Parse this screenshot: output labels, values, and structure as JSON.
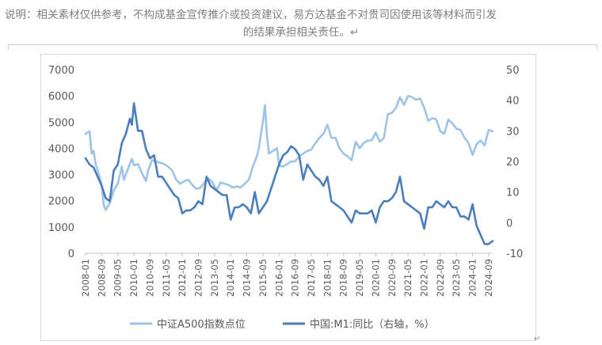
{
  "disclaimer": {
    "line1": "说明：相关素材仅供参考，不构成基金宣传推介或投资建议，易方达基金不对贵司因使用该等材料而引发",
    "line2": "的结果承担相关责任。↵"
  },
  "end_mark": "↵",
  "chart_data": {
    "type": "line",
    "title": "",
    "xlabel": "",
    "ylabel": "",
    "y_left_ticks": [
      "0",
      "1000",
      "2000",
      "3000",
      "4000",
      "5000",
      "6000",
      "7000"
    ],
    "y_right_ticks": [
      "-10",
      "0",
      "10",
      "20",
      "30",
      "40",
      "50"
    ],
    "ylim_left": [
      0,
      7000
    ],
    "ylim_right": [
      -10,
      50
    ],
    "grid": false,
    "legend_position": "bottom",
    "x_ticks": [
      "2008-01",
      "2008-09",
      "2009-05",
      "2010-01",
      "2010-09",
      "2011-05",
      "2012-01",
      "2012-09",
      "2013-05",
      "2014-01",
      "2014-09",
      "2015-05",
      "2016-01",
      "2016-09",
      "2017-05",
      "2018-01",
      "2018-09",
      "2019-05",
      "2020-01",
      "2020-09",
      "2021-05",
      "2022-01",
      "2022-09",
      "2023-05",
      "2024-01",
      "2024-09"
    ],
    "series": [
      {
        "name": "中证A500指数点位",
        "axis": "left",
        "color": "#9dc3e6",
        "points": [
          [
            "2008-01",
            4550
          ],
          [
            "2008-03",
            4650
          ],
          [
            "2008-04",
            3800
          ],
          [
            "2008-05",
            3900
          ],
          [
            "2008-06",
            3400
          ],
          [
            "2008-08",
            2900
          ],
          [
            "2008-09",
            2600
          ],
          [
            "2008-10",
            1850
          ],
          [
            "2008-11",
            1650
          ],
          [
            "2009-01",
            1900
          ],
          [
            "2009-03",
            2400
          ],
          [
            "2009-05",
            2650
          ],
          [
            "2009-07",
            3300
          ],
          [
            "2009-08",
            2800
          ],
          [
            "2009-10",
            3200
          ],
          [
            "2009-12",
            3600
          ],
          [
            "2010-01",
            3350
          ],
          [
            "2010-03",
            3400
          ],
          [
            "2010-05",
            3050
          ],
          [
            "2010-07",
            2750
          ],
          [
            "2010-08",
            3150
          ],
          [
            "2010-10",
            3550
          ],
          [
            "2010-12",
            3500
          ],
          [
            "2011-02",
            3450
          ],
          [
            "2011-04",
            3400
          ],
          [
            "2011-06",
            3300
          ],
          [
            "2011-08",
            3150
          ],
          [
            "2011-10",
            2800
          ],
          [
            "2011-12",
            2650
          ],
          [
            "2012-02",
            2750
          ],
          [
            "2012-04",
            2800
          ],
          [
            "2012-06",
            2600
          ],
          [
            "2012-08",
            2450
          ],
          [
            "2012-10",
            2500
          ],
          [
            "2012-12",
            2700
          ],
          [
            "2013-02",
            2850
          ],
          [
            "2013-04",
            2700
          ],
          [
            "2013-06",
            2400
          ],
          [
            "2013-08",
            2700
          ],
          [
            "2013-10",
            2650
          ],
          [
            "2013-12",
            2600
          ],
          [
            "2014-02",
            2500
          ],
          [
            "2014-04",
            2550
          ],
          [
            "2014-06",
            2500
          ],
          [
            "2014-08",
            2650
          ],
          [
            "2014-10",
            2800
          ],
          [
            "2014-12",
            3300
          ],
          [
            "2015-02",
            3700
          ],
          [
            "2015-03",
            4000
          ],
          [
            "2015-04",
            4550
          ],
          [
            "2015-05",
            5000
          ],
          [
            "2015-06",
            5650
          ],
          [
            "2015-07",
            4500
          ],
          [
            "2015-08",
            3800
          ],
          [
            "2015-10",
            3900
          ],
          [
            "2015-12",
            4000
          ],
          [
            "2016-01",
            3350
          ],
          [
            "2016-03",
            3300
          ],
          [
            "2016-05",
            3400
          ],
          [
            "2016-07",
            3500
          ],
          [
            "2016-09",
            3500
          ],
          [
            "2016-11",
            3700
          ],
          [
            "2017-01",
            3800
          ],
          [
            "2017-03",
            3900
          ],
          [
            "2017-05",
            3950
          ],
          [
            "2017-07",
            4200
          ],
          [
            "2017-09",
            4400
          ],
          [
            "2017-11",
            4550
          ],
          [
            "2018-01",
            4900
          ],
          [
            "2018-03",
            4400
          ],
          [
            "2018-05",
            4400
          ],
          [
            "2018-07",
            4000
          ],
          [
            "2018-09",
            3800
          ],
          [
            "2018-11",
            3700
          ],
          [
            "2019-01",
            3550
          ],
          [
            "2019-03",
            4250
          ],
          [
            "2019-05",
            4000
          ],
          [
            "2019-07",
            4200
          ],
          [
            "2019-09",
            4300
          ],
          [
            "2019-11",
            4300
          ],
          [
            "2020-01",
            4600
          ],
          [
            "2020-03",
            4250
          ],
          [
            "2020-05",
            4400
          ],
          [
            "2020-07",
            5300
          ],
          [
            "2020-09",
            5350
          ],
          [
            "2020-11",
            5550
          ],
          [
            "2021-01",
            5950
          ],
          [
            "2021-03",
            5650
          ],
          [
            "2021-05",
            6000
          ],
          [
            "2021-07",
            5950
          ],
          [
            "2021-09",
            5850
          ],
          [
            "2021-11",
            5900
          ],
          [
            "2022-01",
            5550
          ],
          [
            "2022-03",
            5050
          ],
          [
            "2022-05",
            5150
          ],
          [
            "2022-07",
            5100
          ],
          [
            "2022-09",
            4650
          ],
          [
            "2022-11",
            4550
          ],
          [
            "2023-01",
            5100
          ],
          [
            "2023-03",
            4950
          ],
          [
            "2023-05",
            4750
          ],
          [
            "2023-07",
            4700
          ],
          [
            "2023-09",
            4400
          ],
          [
            "2023-11",
            4200
          ],
          [
            "2024-01",
            3750
          ],
          [
            "2024-03",
            4150
          ],
          [
            "2024-05",
            4300
          ],
          [
            "2024-07",
            4100
          ],
          [
            "2024-09",
            4700
          ],
          [
            "2024-11",
            4650
          ]
        ]
      },
      {
        "name": "中国:M1:同比（右轴，%）",
        "axis": "right",
        "color": "#4a7ebb",
        "points": [
          [
            "2008-01",
            21
          ],
          [
            "2008-03",
            19
          ],
          [
            "2008-05",
            18
          ],
          [
            "2008-07",
            15
          ],
          [
            "2008-09",
            12
          ],
          [
            "2008-11",
            8
          ],
          [
            "2009-01",
            7
          ],
          [
            "2009-03",
            17
          ],
          [
            "2009-05",
            19
          ],
          [
            "2009-07",
            26
          ],
          [
            "2009-09",
            29
          ],
          [
            "2009-11",
            34
          ],
          [
            "2009-12",
            32
          ],
          [
            "2010-01",
            39
          ],
          [
            "2010-03",
            30
          ],
          [
            "2010-05",
            30
          ],
          [
            "2010-07",
            24
          ],
          [
            "2010-09",
            21
          ],
          [
            "2010-11",
            22
          ],
          [
            "2011-01",
            15
          ],
          [
            "2011-03",
            15
          ],
          [
            "2011-05",
            13
          ],
          [
            "2011-07",
            11
          ],
          [
            "2011-09",
            9
          ],
          [
            "2011-11",
            8
          ],
          [
            "2012-01",
            3
          ],
          [
            "2012-03",
            4
          ],
          [
            "2012-05",
            4
          ],
          [
            "2012-07",
            5
          ],
          [
            "2012-09",
            7
          ],
          [
            "2012-11",
            6
          ],
          [
            "2013-01",
            15
          ],
          [
            "2013-03",
            12
          ],
          [
            "2013-05",
            11
          ],
          [
            "2013-07",
            10
          ],
          [
            "2013-09",
            9
          ],
          [
            "2013-11",
            9
          ],
          [
            "2014-01",
            1
          ],
          [
            "2014-03",
            5
          ],
          [
            "2014-05",
            5
          ],
          [
            "2014-07",
            6
          ],
          [
            "2014-09",
            5
          ],
          [
            "2014-11",
            3
          ],
          [
            "2015-01",
            10
          ],
          [
            "2015-03",
            3
          ],
          [
            "2015-05",
            5
          ],
          [
            "2015-07",
            7
          ],
          [
            "2015-09",
            11
          ],
          [
            "2015-11",
            15
          ],
          [
            "2016-01",
            19
          ],
          [
            "2016-03",
            22
          ],
          [
            "2016-05",
            23
          ],
          [
            "2016-07",
            25
          ],
          [
            "2016-09",
            24
          ],
          [
            "2016-11",
            22
          ],
          [
            "2017-01",
            14
          ],
          [
            "2017-03",
            19
          ],
          [
            "2017-05",
            17
          ],
          [
            "2017-07",
            15
          ],
          [
            "2017-09",
            14
          ],
          [
            "2017-11",
            12
          ],
          [
            "2018-01",
            15
          ],
          [
            "2018-03",
            7
          ],
          [
            "2018-05",
            6
          ],
          [
            "2018-07",
            5
          ],
          [
            "2018-09",
            4
          ],
          [
            "2018-11",
            2
          ],
          [
            "2019-01",
            0
          ],
          [
            "2019-03",
            4
          ],
          [
            "2019-05",
            3
          ],
          [
            "2019-07",
            3
          ],
          [
            "2019-09",
            3
          ],
          [
            "2019-11",
            4
          ],
          [
            "2020-01",
            0
          ],
          [
            "2020-03",
            5
          ],
          [
            "2020-05",
            7
          ],
          [
            "2020-07",
            7
          ],
          [
            "2020-09",
            8
          ],
          [
            "2020-11",
            10
          ],
          [
            "2021-01",
            15
          ],
          [
            "2021-03",
            7
          ],
          [
            "2021-05",
            6
          ],
          [
            "2021-07",
            5
          ],
          [
            "2021-09",
            4
          ],
          [
            "2021-11",
            3
          ],
          [
            "2022-01",
            -2
          ],
          [
            "2022-03",
            5
          ],
          [
            "2022-05",
            5
          ],
          [
            "2022-07",
            7
          ],
          [
            "2022-09",
            6
          ],
          [
            "2022-11",
            5
          ],
          [
            "2023-01",
            7
          ],
          [
            "2023-03",
            5
          ],
          [
            "2023-05",
            5
          ],
          [
            "2023-07",
            2
          ],
          [
            "2023-09",
            2
          ],
          [
            "2023-11",
            1
          ],
          [
            "2024-01",
            6
          ],
          [
            "2024-03",
            -1
          ],
          [
            "2024-05",
            -4
          ],
          [
            "2024-07",
            -7
          ],
          [
            "2024-09",
            -7
          ],
          [
            "2024-11",
            -6
          ]
        ]
      }
    ]
  }
}
